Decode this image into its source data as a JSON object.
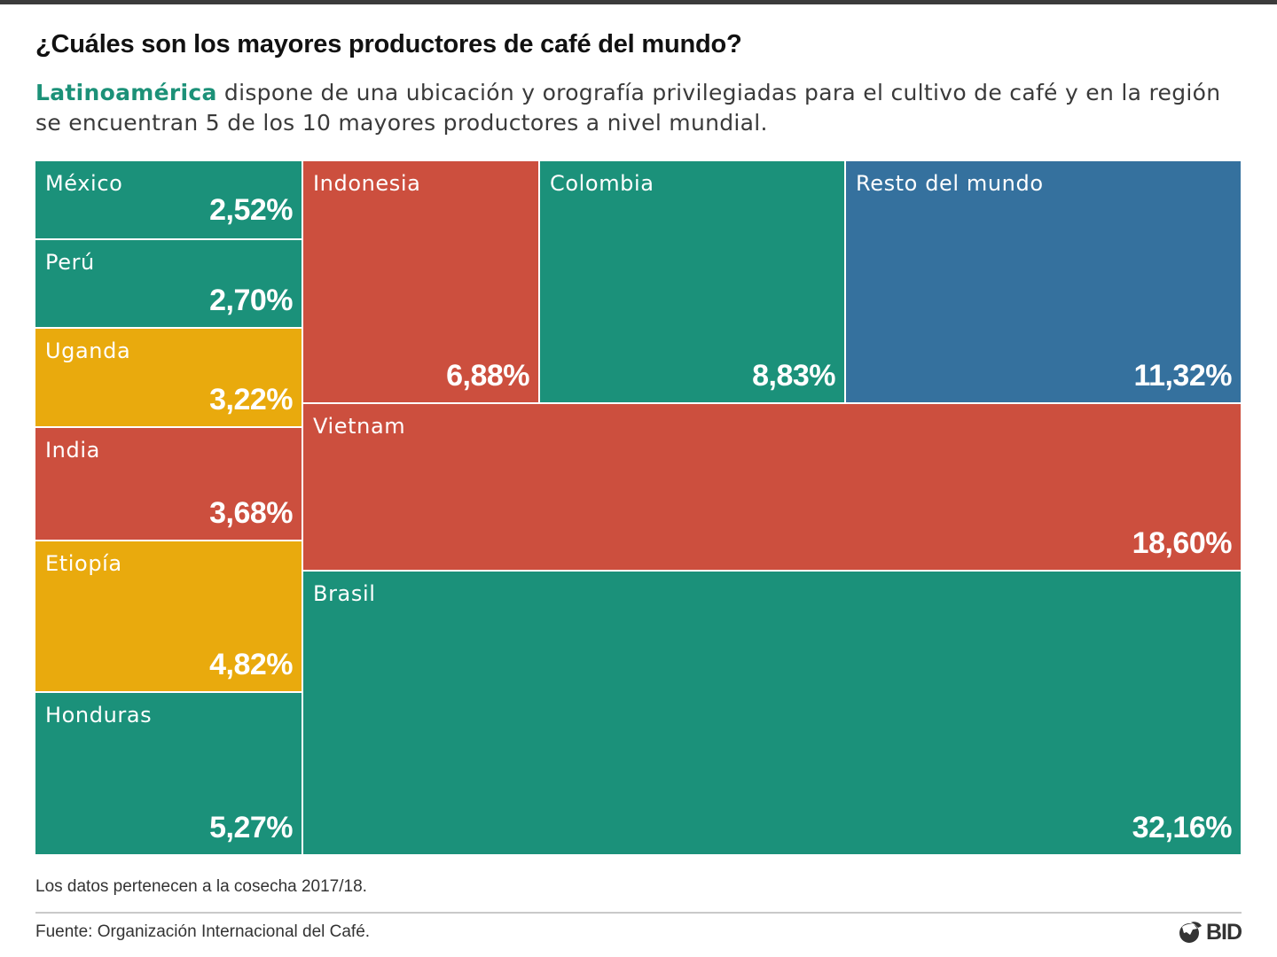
{
  "header": {
    "title": "¿Cuáles son los mayores productores de café del mundo?",
    "subtitle_highlight": "Latinoamérica",
    "subtitle_rest": " dispone de una ubicación y orografía privilegiadas para el cultivo de café y en la región se encuentran 5 de los 10 mayores productores a nivel mundial.",
    "highlight_color": "#1c9178"
  },
  "chart_data": {
    "type": "treemap",
    "title": "¿Cuáles son los mayores productores de café del mundo?",
    "unit": "%",
    "categories": [
      "México",
      "Perú",
      "Uganda",
      "India",
      "Etiopía",
      "Honduras",
      "Indonesia",
      "Colombia",
      "Resto del mundo",
      "Vietnam",
      "Brasil"
    ],
    "values": [
      2.52,
      2.7,
      3.22,
      3.68,
      4.82,
      5.27,
      6.88,
      8.83,
      11.32,
      18.6,
      32.16
    ],
    "labels": [
      "2,52%",
      "2,70%",
      "3,22%",
      "3,68%",
      "4,82%",
      "5,27%",
      "6,88%",
      "8,83%",
      "11,32%",
      "18,60%",
      "32,16%"
    ],
    "groups": [
      "latam",
      "latam",
      "africa",
      "asia",
      "africa",
      "latam",
      "asia",
      "latam",
      "rest",
      "asia",
      "latam"
    ],
    "colors": {
      "latam": "#1b917a",
      "asia": "#cc4f3e",
      "africa": "#e9aa0d",
      "rest": "#35719e"
    }
  },
  "footer": {
    "note": "Los datos pertenecen a la cosecha 2017/18.",
    "source": "Fuente: Organización Internacional del Café.",
    "logo_text": "BID"
  }
}
